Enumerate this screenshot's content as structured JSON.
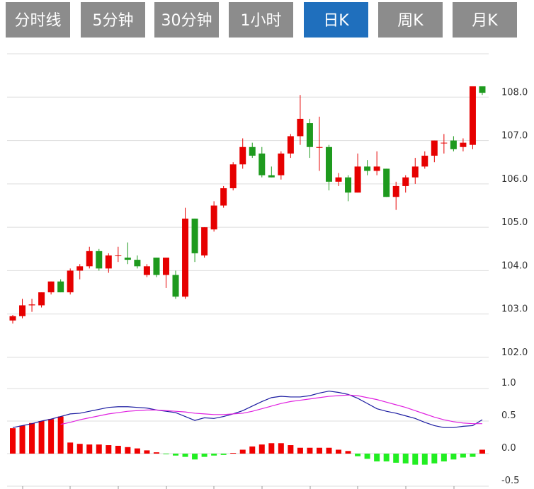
{
  "tabs": [
    {
      "label": "分时线",
      "active": false
    },
    {
      "label": "5分钟",
      "active": false
    },
    {
      "label": "30分钟",
      "active": false
    },
    {
      "label": "1小时",
      "active": false
    },
    {
      "label": "日K",
      "active": true
    },
    {
      "label": "周K",
      "active": false
    },
    {
      "label": "月K",
      "active": false
    }
  ],
  "chart_data": [
    {
      "type": "candlestick",
      "up_color": "#e60000",
      "down_color": "#1e9a1e",
      "grid": true,
      "ylim": [
        102,
        109
      ],
      "yticks": [
        {
          "value": 102,
          "label": "102.0"
        },
        {
          "value": 103,
          "label": "103.0"
        },
        {
          "value": 104,
          "label": "104.0"
        },
        {
          "value": 105,
          "label": "105.0"
        },
        {
          "value": 106,
          "label": "106.0"
        },
        {
          "value": 107,
          "label": "107.0"
        },
        {
          "value": 108,
          "label": "108.0"
        }
      ],
      "open": [
        102.85,
        102.95,
        103.2,
        103.2,
        103.5,
        103.75,
        103.5,
        104.0,
        104.1,
        104.45,
        104.05,
        104.35,
        104.3,
        104.25,
        103.9,
        104.3,
        103.9,
        103.9,
        103.4,
        105.2,
        104.35,
        104.95,
        105.5,
        105.9,
        106.45,
        106.85,
        106.7,
        106.2,
        106.2,
        106.7,
        107.1,
        107.4,
        106.85,
        106.85,
        106.05,
        106.15,
        105.8,
        106.4,
        106.3,
        106.35,
        105.7,
        105.95,
        106.15,
        106.4,
        106.65,
        106.95,
        107.0,
        106.85,
        106.9,
        108.25
      ],
      "high": [
        102.98,
        103.35,
        103.35,
        103.5,
        103.75,
        103.8,
        104.05,
        104.15,
        104.55,
        104.5,
        104.4,
        104.55,
        104.65,
        104.35,
        104.15,
        104.3,
        104.3,
        104.0,
        105.45,
        105.2,
        105.0,
        105.6,
        105.95,
        106.5,
        107.05,
        106.95,
        106.85,
        106.4,
        106.75,
        107.15,
        108.05,
        107.5,
        107.55,
        106.9,
        106.25,
        106.2,
        106.7,
        106.55,
        106.75,
        106.35,
        106.05,
        106.2,
        106.6,
        106.75,
        107.0,
        107.15,
        107.1,
        107.05,
        108.25,
        108.25
      ],
      "low": [
        102.78,
        102.9,
        103.05,
        103.15,
        103.45,
        103.5,
        103.45,
        103.8,
        104.05,
        104.0,
        103.95,
        104.2,
        104.15,
        104.05,
        103.85,
        103.85,
        103.6,
        103.35,
        103.35,
        104.2,
        104.3,
        104.9,
        105.45,
        105.85,
        106.35,
        106.6,
        106.15,
        106.15,
        106.1,
        106.6,
        106.9,
        106.6,
        106.3,
        105.85,
        105.95,
        105.6,
        105.8,
        106.2,
        106.2,
        105.7,
        105.4,
        105.8,
        106.0,
        106.35,
        106.5,
        106.7,
        106.75,
        106.75,
        106.8,
        108.05
      ],
      "close": [
        102.95,
        103.2,
        103.22,
        103.5,
        103.75,
        103.5,
        104.0,
        104.1,
        104.45,
        104.05,
        104.35,
        104.35,
        104.25,
        104.1,
        104.1,
        103.9,
        104.3,
        103.4,
        105.2,
        104.4,
        105.0,
        105.5,
        105.9,
        106.45,
        106.85,
        106.65,
        106.2,
        106.15,
        106.7,
        107.1,
        107.5,
        106.85,
        106.85,
        106.05,
        106.15,
        105.8,
        106.4,
        106.3,
        106.4,
        105.7,
        105.95,
        106.15,
        106.4,
        106.65,
        107.0,
        106.95,
        106.8,
        106.95,
        108.25,
        108.1
      ]
    },
    {
      "type": "macd",
      "pos_color": "#f00000",
      "neg_color": "#22ee22",
      "grid": true,
      "ylim": [
        -0.5,
        1.0
      ],
      "yticks": [
        -0.5,
        {
          "value": 0,
          "label": "0.0"
        },
        0.5,
        {
          "value": 1,
          "label": "1.0"
        }
      ],
      "series": [
        {
          "kind": "bar",
          "values": [
            0.39,
            0.43,
            0.47,
            0.5,
            0.53,
            0.57,
            0.17,
            0.15,
            0.14,
            0.14,
            0.13,
            0.12,
            0.1,
            0.08,
            0.05,
            0.02,
            -0.01,
            -0.03,
            -0.05,
            -0.09,
            -0.05,
            -0.03,
            -0.02,
            0.01,
            0.06,
            0.11,
            0.14,
            0.16,
            0.16,
            0.13,
            0.09,
            0.09,
            0.09,
            0.09,
            0.06,
            0.04,
            -0.04,
            -0.08,
            -0.12,
            -0.12,
            -0.14,
            -0.15,
            -0.17,
            -0.17,
            -0.15,
            -0.12,
            -0.09,
            -0.06,
            -0.05,
            0.06
          ]
        },
        {
          "kind": "line",
          "color": "#1a1aa0",
          "values": [
            0.4,
            0.43,
            0.46,
            0.5,
            0.53,
            0.57,
            0.61,
            0.62,
            0.65,
            0.68,
            0.71,
            0.72,
            0.72,
            0.71,
            0.7,
            0.67,
            0.65,
            0.63,
            0.57,
            0.51,
            0.55,
            0.54,
            0.57,
            0.61,
            0.66,
            0.73,
            0.8,
            0.86,
            0.88,
            0.87,
            0.87,
            0.89,
            0.93,
            0.96,
            0.94,
            0.91,
            0.85,
            0.77,
            0.69,
            0.65,
            0.62,
            0.58,
            0.54,
            0.48,
            0.43,
            0.4,
            0.4,
            0.42,
            0.43,
            0.52
          ]
        },
        {
          "kind": "line",
          "color": "#e020e0",
          "values": [
            null,
            null,
            null,
            null,
            null,
            0.45,
            0.48,
            0.52,
            0.55,
            0.58,
            0.61,
            0.63,
            0.65,
            0.66,
            0.67,
            0.67,
            0.66,
            0.65,
            0.64,
            0.62,
            0.61,
            0.6,
            0.6,
            0.61,
            0.62,
            0.65,
            0.69,
            0.73,
            0.77,
            0.8,
            0.82,
            0.84,
            0.86,
            0.88,
            0.89,
            0.9,
            0.89,
            0.86,
            0.83,
            0.79,
            0.75,
            0.71,
            0.66,
            0.61,
            0.56,
            0.52,
            0.49,
            0.47,
            0.46,
            0.46
          ]
        }
      ]
    }
  ]
}
